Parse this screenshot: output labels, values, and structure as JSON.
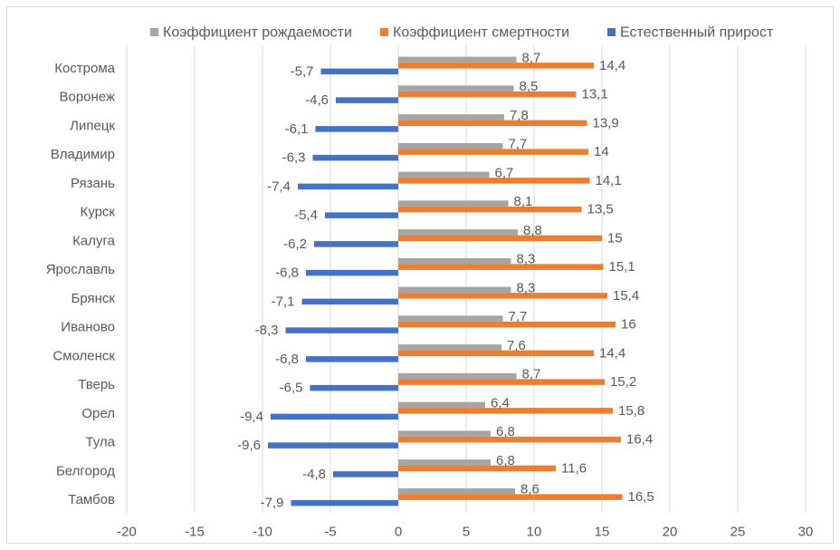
{
  "chart_data": {
    "type": "bar",
    "orientation": "horizontal",
    "categories": [
      "Кострома",
      "Воронеж",
      "Липецк",
      "Владимир",
      "Рязань",
      "Курск",
      "Калуга",
      "Ярославль",
      "Брянск",
      "Иваново",
      "Смоленск",
      "Тверь",
      "Орел",
      "Тула",
      "Белгород",
      "Тамбов"
    ],
    "series": [
      {
        "name": "Коэффициент рождаемости",
        "color": "#A5A5A5",
        "values": [
          8.7,
          8.5,
          7.8,
          7.7,
          6.7,
          8.1,
          8.8,
          8.3,
          8.3,
          7.7,
          7.6,
          8.7,
          6.4,
          6.8,
          6.8,
          8.6
        ]
      },
      {
        "name": "Коэффициент смертности",
        "color": "#ED7D31",
        "values": [
          14.4,
          13.1,
          13.9,
          14,
          14.1,
          13.5,
          15,
          15.1,
          15.4,
          16,
          14.4,
          15.2,
          15.8,
          16.4,
          11.6,
          16.5
        ]
      },
      {
        "name": "Естественный прирост",
        "color": "#4472C4",
        "values": [
          -5.7,
          -4.6,
          -6.1,
          -6.3,
          -7.4,
          -5.4,
          -6.2,
          -6.8,
          -7.1,
          -8.3,
          -6.8,
          -6.5,
          -9.4,
          -9.6,
          -4.8,
          -7.9
        ]
      }
    ],
    "xlim": [
      -20,
      30
    ],
    "xticks": [
      -20,
      -15,
      -10,
      -5,
      0,
      5,
      10,
      15,
      20,
      25,
      30
    ],
    "grid": "vertical",
    "legend": "top"
  }
}
